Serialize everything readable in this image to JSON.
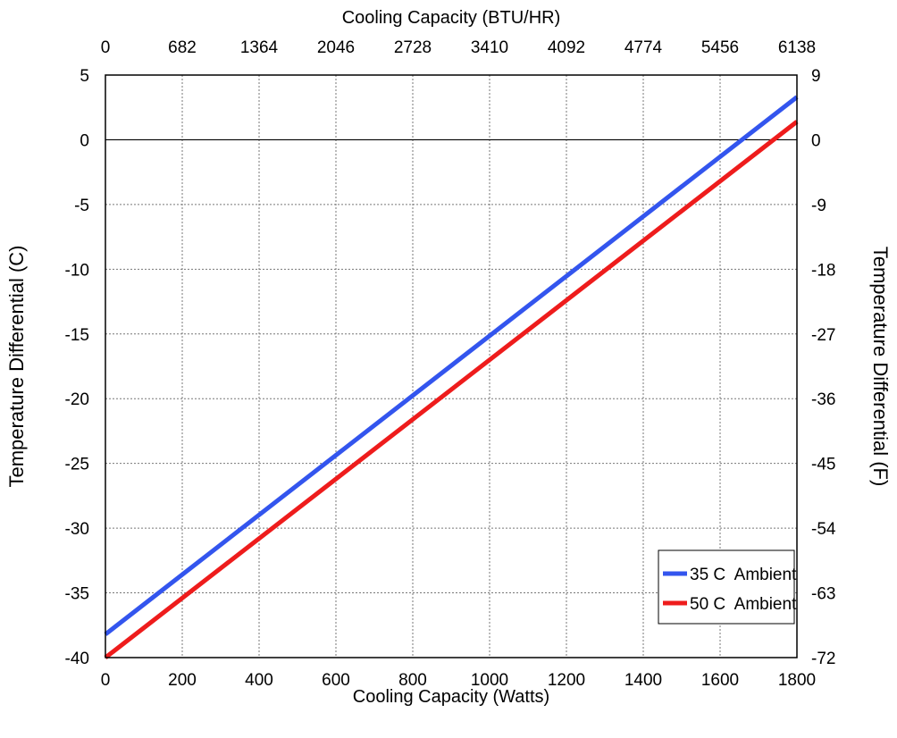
{
  "chart_data": {
    "type": "line",
    "title": "",
    "xlabel": "Cooling Capacity (Watts)",
    "x2label": "Cooling Capacity (BTU/HR)",
    "ylabel": "Temperature Differential (C)",
    "y2label": "Temperature Differential (F)",
    "xlim": [
      0,
      1800
    ],
    "ylim": [
      -40,
      5
    ],
    "x_ticks": [
      "0",
      "200",
      "400",
      "600",
      "800",
      "1000",
      "1200",
      "1400",
      "1600",
      "1800"
    ],
    "x2_ticks": [
      "0",
      "682",
      "1364",
      "2046",
      "2728",
      "3410",
      "4092",
      "4774",
      "5456",
      "6138"
    ],
    "y_ticks": [
      "5",
      "0",
      "-5",
      "-10",
      "-15",
      "-20",
      "-25",
      "-30",
      "-35",
      "-40"
    ],
    "y2_ticks": [
      "9",
      "0",
      "-9",
      "-18",
      "-27",
      "-36",
      "-45",
      "-54",
      "-63",
      "-72"
    ],
    "grid": true,
    "legend_position": "bottom-right",
    "series": [
      {
        "name": "35 C  Ambient",
        "color": "#3355ee",
        "x": [
          0,
          1800
        ],
        "y": [
          -38.2,
          3.3
        ]
      },
      {
        "name": "50 C  Ambient",
        "color": "#ee1c1c",
        "x": [
          0,
          1800
        ],
        "y": [
          -40.0,
          1.4
        ]
      }
    ]
  }
}
